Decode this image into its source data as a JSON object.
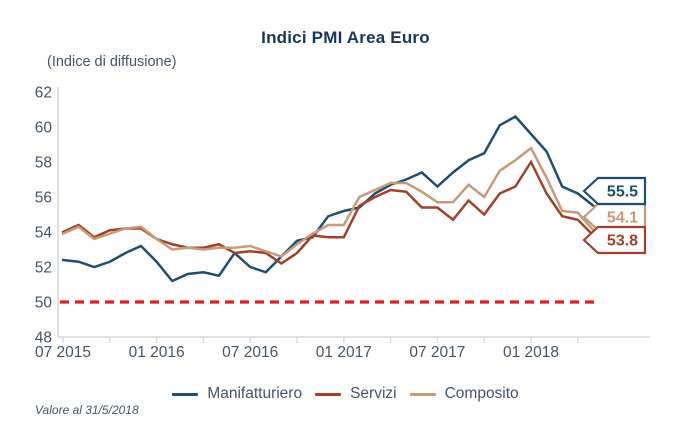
{
  "header": {
    "title": "Indici PMI Area Euro",
    "subtitle": "(Indice di diffusione)"
  },
  "footnote": "Valore al 31/5/2018",
  "colors": {
    "title": "#17375E",
    "axis_text": "#44546A",
    "axis_line": "#D9D9D9",
    "baseline_red": "#E02020",
    "manifatturiero": "#1F4E6E",
    "servizi": "#A04228",
    "composito": "#C79B78"
  },
  "chart_data": {
    "type": "line",
    "title": "Indici PMI Area Euro",
    "subtitle_unit": "(Indice di diffusione)",
    "ylim": [
      48,
      62
    ],
    "yticks": [
      62,
      60,
      58,
      56,
      54,
      52,
      50,
      48
    ],
    "grid": false,
    "legend_position": "bottom",
    "xtick_labels": [
      "07 2015",
      "01 2016",
      "07 2016",
      "01 2017",
      "07 2017",
      "01 2018"
    ],
    "x": [
      "07 2015",
      "08 2015",
      "09 2015",
      "10 2015",
      "11 2015",
      "12 2015",
      "01 2016",
      "02 2016",
      "03 2016",
      "04 2016",
      "05 2016",
      "06 2016",
      "07 2016",
      "08 2016",
      "09 2016",
      "10 2016",
      "11 2016",
      "12 2016",
      "01 2017",
      "02 2017",
      "03 2017",
      "04 2017",
      "05 2017",
      "06 2017",
      "07 2017",
      "08 2017",
      "09 2017",
      "10 2017",
      "11 2017",
      "12 2017",
      "01 2018",
      "02 2018",
      "03 2018",
      "04 2018",
      "05 2018"
    ],
    "baseline": {
      "value": 50,
      "style": "dashed",
      "color": "#E02020"
    },
    "series": [
      {
        "name": "Manifatturiero",
        "color": "#1F4E6E",
        "end_label": "55.5",
        "values": [
          52.4,
          52.3,
          52.0,
          52.3,
          52.8,
          53.2,
          52.3,
          51.2,
          51.6,
          51.7,
          51.5,
          52.8,
          52.0,
          51.7,
          52.6,
          53.5,
          53.7,
          54.9,
          55.2,
          55.4,
          56.2,
          56.7,
          57.0,
          57.4,
          56.6,
          57.4,
          58.1,
          58.5,
          60.1,
          60.6,
          59.6,
          58.6,
          56.6,
          56.2,
          55.5
        ]
      },
      {
        "name": "Servizi",
        "color": "#A04228",
        "end_label": "53.8",
        "values": [
          54.0,
          54.4,
          53.7,
          54.1,
          54.2,
          54.2,
          53.6,
          53.3,
          53.1,
          53.1,
          53.3,
          52.8,
          52.9,
          52.8,
          52.2,
          52.8,
          53.8,
          53.7,
          53.7,
          55.5,
          56.0,
          56.4,
          56.3,
          55.4,
          55.4,
          54.7,
          55.8,
          55.0,
          56.2,
          56.6,
          58.0,
          56.2,
          54.9,
          54.7,
          53.8
        ]
      },
      {
        "name": "Composito",
        "color": "#C79B78",
        "end_label": "54.1",
        "values": [
          53.9,
          54.3,
          53.6,
          53.9,
          54.2,
          54.3,
          53.6,
          53.0,
          53.1,
          53.0,
          53.1,
          53.1,
          53.2,
          52.9,
          52.6,
          53.3,
          53.9,
          54.4,
          54.4,
          56.0,
          56.4,
          56.8,
          56.8,
          56.3,
          55.7,
          55.7,
          56.7,
          56.0,
          57.5,
          58.1,
          58.8,
          57.1,
          55.2,
          55.1,
          54.1
        ]
      }
    ]
  }
}
